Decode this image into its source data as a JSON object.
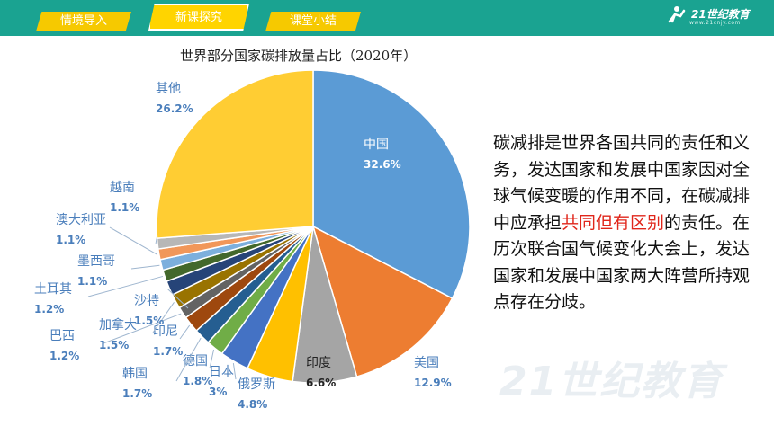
{
  "nav": {
    "tabs": [
      {
        "label": "情境导入",
        "active": false
      },
      {
        "label": "新课探究",
        "active": true
      },
      {
        "label": "课堂小结",
        "active": false
      }
    ],
    "logo_text": "21世纪教育",
    "logo_sub": "www.21cnjy.com"
  },
  "chart_data": {
    "type": "pie",
    "title": "世界部分国家碳排放量占比（2020年）",
    "slices": [
      {
        "label": "中国",
        "value_label": "32.6%",
        "value": 32.6,
        "color": "#5b9bd5"
      },
      {
        "label": "美国",
        "value_label": "12.9%",
        "value": 12.9,
        "color": "#ed7d31"
      },
      {
        "label": "印度",
        "value_label": "6.6%",
        "value": 6.6,
        "color": "#a5a5a5"
      },
      {
        "label": "俄罗斯",
        "value_label": "4.8%",
        "value": 4.8,
        "color": "#ffc000"
      },
      {
        "label": "日本",
        "value_label": "3%",
        "value": 3.0,
        "color": "#4472c4"
      },
      {
        "label": "德国",
        "value_label": "1.8%",
        "value": 1.8,
        "color": "#70ad47"
      },
      {
        "label": "韩国",
        "value_label": "1.7%",
        "value": 1.7,
        "color": "#255e91"
      },
      {
        "label": "印尼",
        "value_label": "1.7%",
        "value": 1.7,
        "color": "#9e480e"
      },
      {
        "label": "巴西",
        "value_label": "1.2%",
        "value": 1.2,
        "color": "#636363"
      },
      {
        "label": "加拿大",
        "value_label": "1.5%",
        "value": 1.5,
        "color": "#997300"
      },
      {
        "label": "沙特",
        "value_label": "1.5%",
        "value": 1.5,
        "color": "#264478"
      },
      {
        "label": "土耳其",
        "value_label": "1.2%",
        "value": 1.2,
        "color": "#43682b"
      },
      {
        "label": "墨西哥",
        "value_label": "1.1%",
        "value": 1.1,
        "color": "#7cafdd"
      },
      {
        "label": "澳大利亚",
        "value_label": "1.1%",
        "value": 1.1,
        "color": "#f1975a"
      },
      {
        "label": "越南",
        "value_label": "1.1%",
        "value": 1.1,
        "color": "#b7b7b7"
      },
      {
        "label": "其他",
        "value_label": "26.2%",
        "value": 26.2,
        "color": "#ffcd33"
      }
    ]
  },
  "note": {
    "before": "碳减排是世界各国共同的责任和义务，发达国家和发展中国家因对全球气候变暖的作用不同，在碳减排中应承担",
    "highlight": "共同但有区别",
    "after": "的责任。在历次联合国气候变化大会上，发达国家和发展中国家两大阵营所持观点存在分歧。"
  },
  "watermark": "21世纪教育"
}
